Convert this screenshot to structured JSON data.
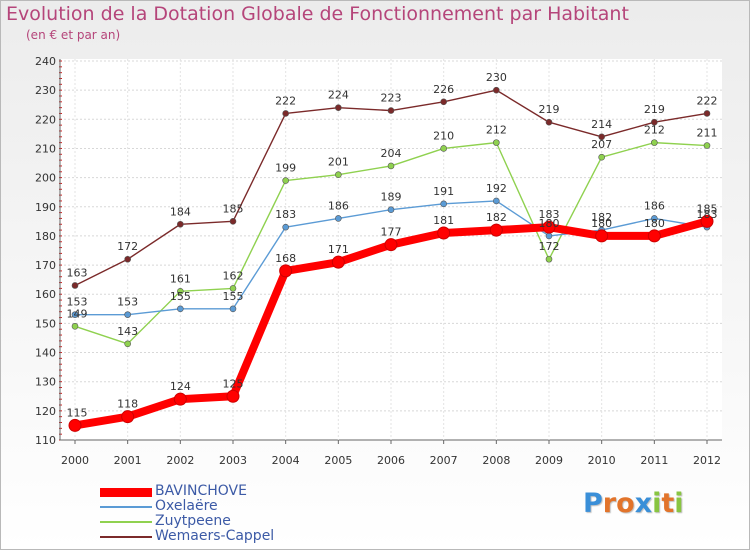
{
  "title": "Evolution de la Dotation Globale de Fonctionnement par Habitant",
  "subtitle": "(en € et par an)",
  "logo": {
    "text": "Proxiti",
    "letters": [
      {
        "ch": "P",
        "color": "#3a8fd8"
      },
      {
        "ch": "r",
        "color": "#e2742b"
      },
      {
        "ch": "o",
        "color": "#e2742b"
      },
      {
        "ch": "x",
        "color": "#3a8fd8"
      },
      {
        "ch": "i",
        "color": "#89c541"
      },
      {
        "ch": "t",
        "color": "#e2742b"
      },
      {
        "ch": "i",
        "color": "#89c541"
      }
    ]
  },
  "chart_data": {
    "type": "line",
    "title": "Evolution de la Dotation Globale de Fonctionnement par Habitant",
    "subtitle": "(en € et par an)",
    "xlabel": "",
    "ylabel": "",
    "ylim": [
      110,
      240
    ],
    "yticks": [
      110,
      120,
      130,
      140,
      150,
      160,
      170,
      180,
      190,
      200,
      210,
      220,
      230,
      240
    ],
    "grid": true,
    "legend_position": "bottom-left",
    "categories": [
      "2000",
      "2001",
      "2002",
      "2003",
      "2004",
      "2005",
      "2006",
      "2007",
      "2008",
      "2009",
      "2010",
      "2011",
      "2012"
    ],
    "series": [
      {
        "name": "BAVINCHOVE",
        "color": "#ff0000",
        "values": [
          115,
          118,
          124,
          125,
          168,
          171,
          177,
          181,
          182,
          183,
          180,
          180,
          185
        ]
      },
      {
        "name": "Oxelaëre",
        "color": "#5b9bd5",
        "values": [
          153,
          153,
          155,
          155,
          183,
          186,
          189,
          191,
          192,
          180,
          182,
          186,
          183
        ]
      },
      {
        "name": "Zuytpeene",
        "color": "#8fd14f",
        "values": [
          149,
          143,
          161,
          162,
          199,
          201,
          204,
          210,
          212,
          172,
          207,
          212,
          211
        ]
      },
      {
        "name": "Wemaers-Cappel",
        "color": "#7b2a2a",
        "values": [
          163,
          172,
          184,
          185,
          222,
          224,
          223,
          226,
          230,
          219,
          214,
          219,
          222
        ]
      }
    ]
  }
}
